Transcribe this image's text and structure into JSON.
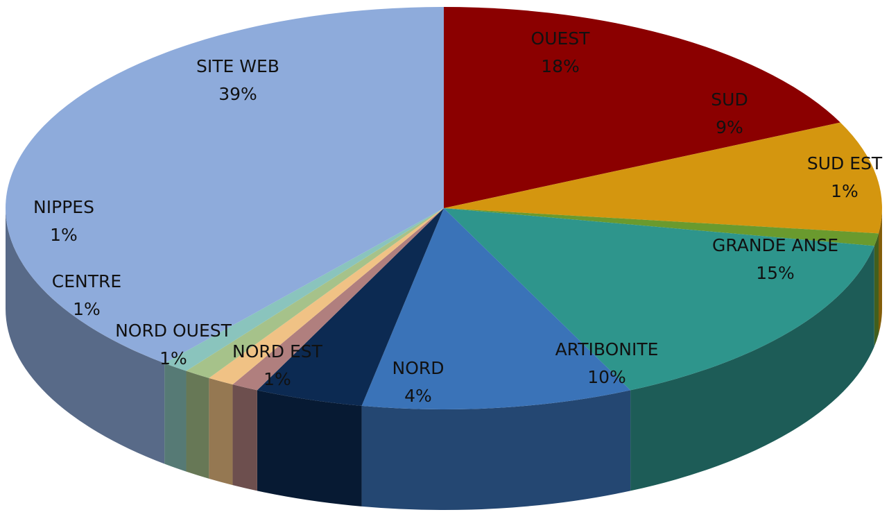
{
  "chart_data": {
    "type": "pie",
    "categories": [
      "OUEST",
      "SUD",
      "SUD EST",
      "GRANDE ANSE",
      "ARTIBONITE",
      "NORD",
      "NORD EST",
      "NORD OUEST",
      "CENTRE",
      "NIPPES",
      "SITE WEB"
    ],
    "values": [
      18,
      9,
      1,
      15,
      10,
      4,
      1,
      1,
      1,
      1,
      39
    ],
    "value_labels": [
      "18%",
      "9%",
      "1%",
      "15%",
      "10%",
      "4%",
      "1%",
      "1%",
      "1%",
      "1%",
      "39%"
    ],
    "colors": [
      "#8b0000",
      "#d4960f",
      "#6a9a2e",
      "#2e958c",
      "#3a73b8",
      "#0c2a52",
      "#b07f7e",
      "#f0c285",
      "#a6c28a",
      "#8ac4bd",
      "#8eabdb"
    ]
  }
}
